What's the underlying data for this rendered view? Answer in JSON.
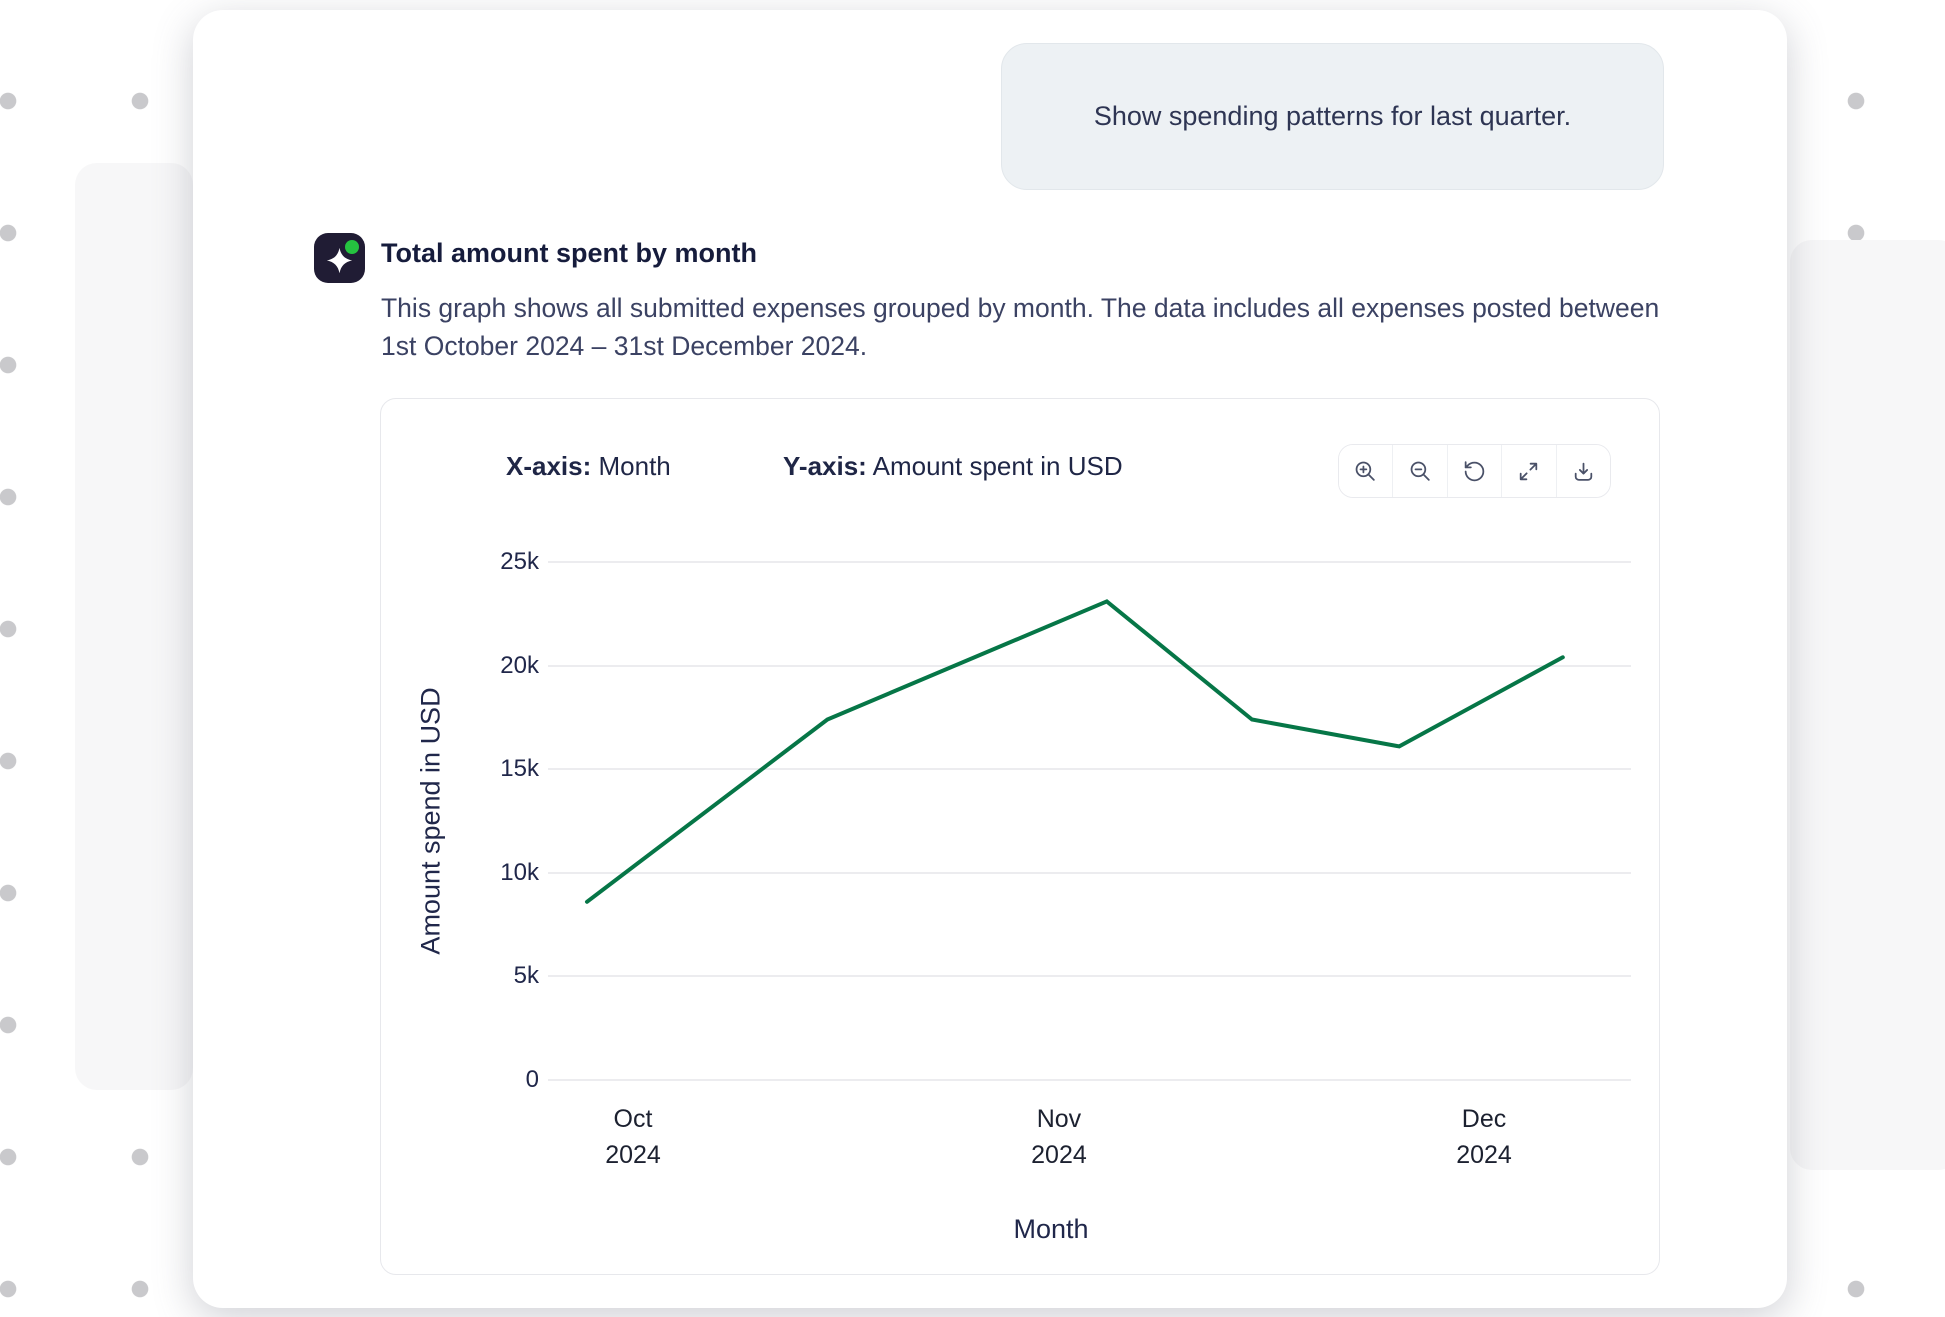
{
  "chat": {
    "user_message": "Show spending patterns for last quarter.",
    "assistant": {
      "avatar_icon": "sparkle-icon",
      "status_dot_color": "#25c340",
      "title": "Total amount spent by month",
      "description": "This graph shows all submitted expenses grouped by month. The data includes all expenses posted between 1st October 2024 – 31st December 2024."
    }
  },
  "chart_card": {
    "x_axis_head": {
      "prefix": "X-axis:",
      "value": "Month"
    },
    "y_axis_head": {
      "prefix": "Y-axis:",
      "value": "Amount spent in USD"
    },
    "toolbar_icons": [
      "zoom-in-icon",
      "zoom-out-icon",
      "reset-icon",
      "expand-icon",
      "download-icon"
    ]
  },
  "chart_data": {
    "type": "line",
    "title": "Total amount spent by month",
    "xlabel": "Month",
    "ylabel": "Amount spend in USD",
    "ylim": [
      0,
      25000
    ],
    "grid": "horizontal",
    "legend": "none",
    "line_color": "#067647",
    "y_ticks": [
      {
        "value": 0,
        "label": "0"
      },
      {
        "value": 5000,
        "label": "5k"
      },
      {
        "value": 10000,
        "label": "10k"
      },
      {
        "value": 15000,
        "label": "15k"
      },
      {
        "value": 20000,
        "label": "20k"
      },
      {
        "value": 25000,
        "label": "25k"
      }
    ],
    "x_ticks": [
      {
        "frac": 0.0785,
        "lines": [
          "Oct",
          "2024"
        ]
      },
      {
        "frac": 0.4718,
        "lines": [
          "Nov",
          "2024"
        ]
      },
      {
        "frac": 0.8643,
        "lines": [
          "Dec",
          "2024"
        ]
      }
    ],
    "series": [
      {
        "name": "Total amount spent",
        "points": [
          {
            "frac": 0.036,
            "value": 8600
          },
          {
            "frac": 0.258,
            "value": 17400
          },
          {
            "frac": 0.516,
            "value": 23100
          },
          {
            "frac": 0.65,
            "value": 17400
          },
          {
            "frac": 0.786,
            "value": 16100
          },
          {
            "frac": 0.937,
            "value": 20400
          }
        ]
      }
    ]
  }
}
